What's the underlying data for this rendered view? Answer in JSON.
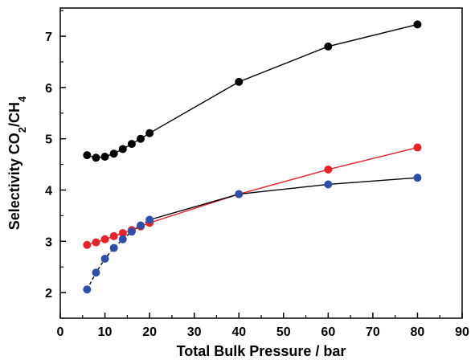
{
  "chart_data": {
    "type": "scatter",
    "xlabel": "Total Bulk Pressure / bar",
    "ylabel": {
      "parts": [
        {
          "text": "Selectivity CO",
          "sub": false
        },
        {
          "text": "2",
          "sub": true
        },
        {
          "text": "/CH",
          "sub": false
        },
        {
          "text": "4",
          "sub": true
        }
      ]
    },
    "xlim": [
      0,
      90
    ],
    "ylim": [
      1.5,
      7.55
    ],
    "xticks": [
      0,
      10,
      20,
      30,
      40,
      50,
      60,
      70,
      80,
      90
    ],
    "yticks": [
      2,
      3,
      4,
      5,
      6,
      7
    ],
    "grid": false,
    "series": [
      {
        "color": "#000000",
        "line_color": "#000000",
        "x": [
          6,
          8,
          10,
          12,
          14,
          16,
          18,
          20,
          40,
          60,
          80
        ],
        "y": [
          4.68,
          4.63,
          4.65,
          4.71,
          4.8,
          4.9,
          5.0,
          5.11,
          6.11,
          6.8,
          7.23
        ]
      },
      {
        "color": "#e8232a",
        "line_color": "#e8232a",
        "x": [
          6,
          8,
          10,
          12,
          14,
          16,
          18,
          20,
          40,
          60,
          80
        ],
        "y": [
          2.93,
          2.98,
          3.04,
          3.1,
          3.16,
          3.22,
          3.29,
          3.36,
          3.92,
          4.4,
          4.83
        ]
      },
      {
        "color": "#2e4fa8",
        "line_color": "#000000",
        "line_style": "dashed-segment-then-solid",
        "x": [
          6,
          8,
          10,
          12,
          14,
          16,
          18,
          20,
          40,
          60,
          80
        ],
        "y": [
          2.06,
          2.39,
          2.66,
          2.87,
          3.04,
          3.19,
          3.31,
          3.42,
          3.92,
          4.11,
          4.24
        ]
      }
    ]
  }
}
